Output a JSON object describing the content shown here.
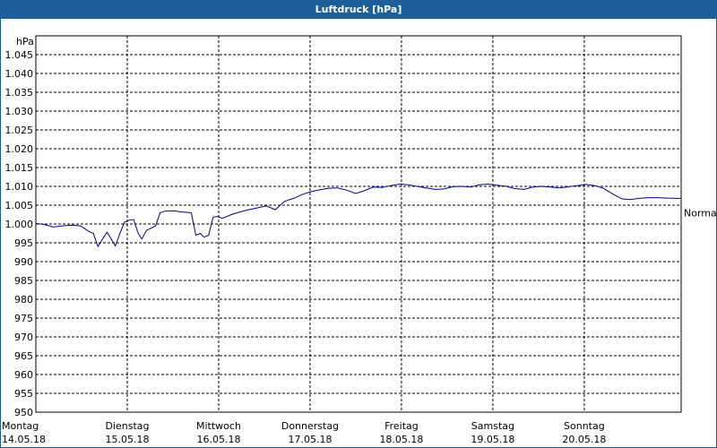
{
  "title": "Luftdruck [hPa]",
  "chart_data": {
    "type": "line",
    "title": "Luftdruck [hPa]",
    "ylabel": "hPa",
    "ylim": [
      950,
      1050
    ],
    "y_ticks": [
      "950",
      "955",
      "960",
      "965",
      "970",
      "975",
      "980",
      "985",
      "990",
      "995",
      "1.000",
      "1.005",
      "1.010",
      "1.015",
      "1.020",
      "1.025",
      "1.030",
      "1.035",
      "1.040",
      "1.045"
    ],
    "y_tick_values": [
      950,
      955,
      960,
      965,
      970,
      975,
      980,
      985,
      990,
      995,
      1000,
      1005,
      1010,
      1015,
      1020,
      1025,
      1030,
      1035,
      1040,
      1045
    ],
    "xlim": [
      0,
      7.06
    ],
    "x_ticks": [
      {
        "day": "Montag",
        "date": "14.05.18",
        "x": 0
      },
      {
        "day": "Dienstag",
        "date": "15.05.18",
        "x": 1
      },
      {
        "day": "Mittwoch",
        "date": "16.05.18",
        "x": 2
      },
      {
        "day": "Donnerstag",
        "date": "17.05.18",
        "x": 3
      },
      {
        "day": "Freitag",
        "date": "18.05.18",
        "x": 4
      },
      {
        "day": "Samstag",
        "date": "19.05.18",
        "x": 5
      },
      {
        "day": "Sonntag",
        "date": "20.05.18",
        "x": 6
      }
    ],
    "reference_label": "Normal",
    "reference_value": 1003,
    "grid": true,
    "line_color": "#00008b",
    "series": [
      {
        "x": [
          0.0,
          0.1,
          0.19,
          0.29,
          0.39,
          0.49,
          0.58,
          0.63,
          0.68,
          0.73,
          0.78,
          0.87,
          0.92,
          0.97,
          1.02,
          1.07,
          1.12,
          1.16,
          1.21,
          1.31,
          1.36,
          1.41,
          1.5,
          1.6,
          1.7,
          1.75,
          1.8,
          1.84,
          1.89,
          1.94,
          1.99,
          2.04,
          2.14,
          2.23,
          2.33,
          2.43,
          2.52,
          2.62,
          2.72,
          2.82,
          2.91,
          3.01,
          3.11,
          3.2,
          3.3,
          3.4,
          3.5,
          3.59,
          3.69,
          3.79,
          3.88,
          3.98,
          4.08,
          4.17,
          4.27,
          4.37,
          4.47,
          4.56,
          4.66,
          4.76,
          4.85,
          4.95,
          5.05,
          5.15,
          5.24,
          5.34,
          5.44,
          5.53,
          5.63,
          5.73,
          5.83,
          5.92,
          6.02,
          6.12,
          6.21,
          6.31,
          6.41,
          6.5,
          6.6,
          6.7,
          6.8,
          6.89,
          6.99,
          7.06
        ],
        "y": [
          1000.2,
          999.8,
          999.2,
          999.5,
          999.7,
          999.5,
          998.0,
          997.5,
          994.0,
          996.0,
          997.8,
          994.2,
          997.5,
          1000.5,
          1001.0,
          1001.2,
          997.5,
          996.0,
          998.3,
          999.5,
          1003.0,
          1003.4,
          1003.5,
          1003.2,
          1003.0,
          997.0,
          997.5,
          996.5,
          997.0,
          1001.8,
          1002.0,
          1001.5,
          1002.5,
          1003.2,
          1003.8,
          1004.3,
          1004.8,
          1003.8,
          1006.0,
          1006.8,
          1007.8,
          1008.6,
          1009.1,
          1009.5,
          1009.6,
          1009.0,
          1008.1,
          1008.8,
          1009.8,
          1009.7,
          1010.2,
          1010.6,
          1010.4,
          1010.0,
          1009.6,
          1009.2,
          1009.3,
          1009.9,
          1010.0,
          1009.8,
          1010.4,
          1010.6,
          1010.3,
          1010.0,
          1009.4,
          1009.2,
          1009.8,
          1010.0,
          1009.8,
          1009.6,
          1009.9,
          1010.2,
          1010.5,
          1010.2,
          1009.5,
          1008.0,
          1006.7,
          1006.5,
          1006.8,
          1007.0,
          1007.0,
          1006.9,
          1006.8,
          1006.8
        ]
      }
    ]
  }
}
